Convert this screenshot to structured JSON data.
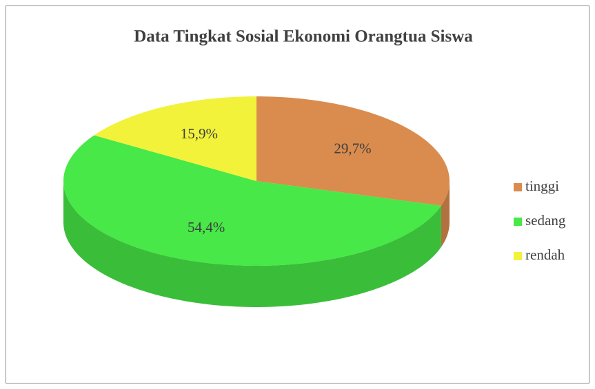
{
  "chart_data": {
    "type": "pie",
    "title": "Data Tingkat Sosial Ekonomi Orangtua Siswa",
    "categories": [
      "tinggi",
      "sedang",
      "rendah"
    ],
    "values": [
      29.7,
      54.4,
      15.9
    ],
    "value_labels": [
      "29,7%",
      "54,4%",
      "15,9%"
    ],
    "colors": [
      "#d98c4e",
      "#47e847",
      "#f2f23a"
    ],
    "legend": "right"
  }
}
